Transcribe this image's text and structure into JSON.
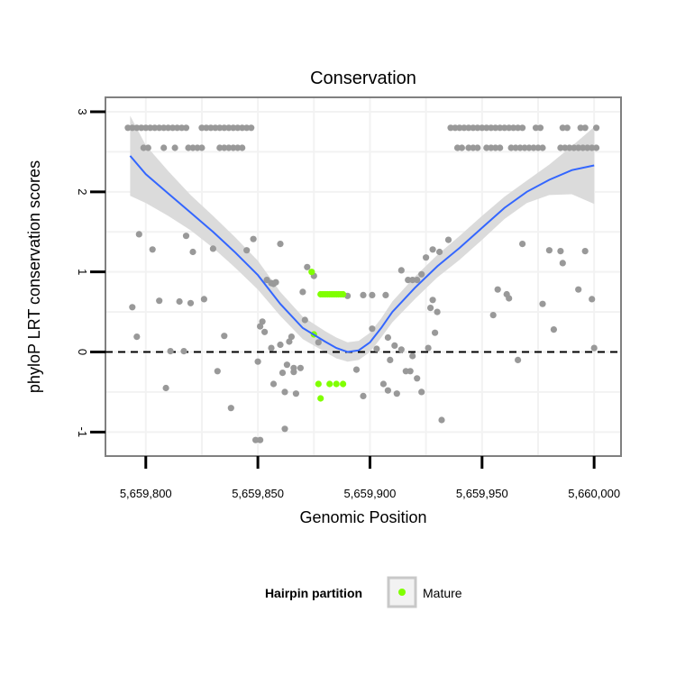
{
  "chart_data": {
    "type": "scatter",
    "title": "Conservation",
    "xlabel": "Genomic Position",
    "ylabel": "phyloP LRT conservation scores",
    "xlim": [
      5659782,
      5660012
    ],
    "ylim": [
      -1.3,
      3.18
    ],
    "x_ticks": [
      5659800,
      5659850,
      5659900,
      5659950,
      5660000
    ],
    "x_tick_labels": [
      "5,659,800",
      "5,659,850",
      "5,659,900",
      "5,659,950",
      "5,660,000"
    ],
    "y_ticks": [
      -1,
      0,
      1,
      2,
      3
    ],
    "y_tick_labels": [
      "-1",
      "0",
      "1",
      "2",
      "3"
    ],
    "reference_line": {
      "y": 0,
      "style": "dashed"
    },
    "grid": true,
    "legend": {
      "title": "Hairpin partition",
      "position": "bottom",
      "entries": [
        {
          "label": "Mature",
          "color": "#80ff00"
        }
      ]
    },
    "colors": {
      "other": "#999999",
      "mature": "#80ff00",
      "smooth": "#3366ff",
      "band": "#d9d9d9"
    },
    "series": [
      {
        "name": "Other",
        "points": [
          [
            5659792,
            2.8
          ],
          [
            5659794,
            2.8
          ],
          [
            5659796,
            2.8
          ],
          [
            5659798,
            2.8
          ],
          [
            5659800,
            2.8
          ],
          [
            5659802,
            2.8
          ],
          [
            5659804,
            2.8
          ],
          [
            5659806,
            2.8
          ],
          [
            5659808,
            2.8
          ],
          [
            5659810,
            2.8
          ],
          [
            5659812,
            2.8
          ],
          [
            5659814,
            2.8
          ],
          [
            5659816,
            2.8
          ],
          [
            5659818,
            2.8
          ],
          [
            5659825,
            2.8
          ],
          [
            5659827,
            2.8
          ],
          [
            5659829,
            2.8
          ],
          [
            5659831,
            2.8
          ],
          [
            5659833,
            2.8
          ],
          [
            5659835,
            2.8
          ],
          [
            5659837,
            2.8
          ],
          [
            5659839,
            2.8
          ],
          [
            5659841,
            2.8
          ],
          [
            5659843,
            2.8
          ],
          [
            5659845,
            2.8
          ],
          [
            5659847,
            2.8
          ],
          [
            5659799,
            2.55
          ],
          [
            5659801,
            2.55
          ],
          [
            5659808,
            2.55
          ],
          [
            5659813,
            2.55
          ],
          [
            5659819,
            2.55
          ],
          [
            5659821,
            2.55
          ],
          [
            5659823,
            2.55
          ],
          [
            5659825,
            2.55
          ],
          [
            5659833,
            2.55
          ],
          [
            5659835,
            2.55
          ],
          [
            5659837,
            2.55
          ],
          [
            5659839,
            2.55
          ],
          [
            5659841,
            2.55
          ],
          [
            5659843,
            2.55
          ],
          [
            5659936,
            2.8
          ],
          [
            5659938,
            2.8
          ],
          [
            5659940,
            2.8
          ],
          [
            5659942,
            2.8
          ],
          [
            5659944,
            2.8
          ],
          [
            5659946,
            2.8
          ],
          [
            5659948,
            2.8
          ],
          [
            5659950,
            2.8
          ],
          [
            5659952,
            2.8
          ],
          [
            5659954,
            2.8
          ],
          [
            5659956,
            2.8
          ],
          [
            5659958,
            2.8
          ],
          [
            5659960,
            2.8
          ],
          [
            5659962,
            2.8
          ],
          [
            5659964,
            2.8
          ],
          [
            5659966,
            2.8
          ],
          [
            5659968,
            2.8
          ],
          [
            5659974,
            2.8
          ],
          [
            5659976,
            2.8
          ],
          [
            5659986,
            2.8
          ],
          [
            5659988,
            2.8
          ],
          [
            5659994,
            2.8
          ],
          [
            5659996,
            2.8
          ],
          [
            5660001,
            2.8
          ],
          [
            5659939,
            2.55
          ],
          [
            5659941,
            2.55
          ],
          [
            5659944,
            2.55
          ],
          [
            5659946,
            2.55
          ],
          [
            5659948,
            2.55
          ],
          [
            5659952,
            2.55
          ],
          [
            5659954,
            2.55
          ],
          [
            5659956,
            2.55
          ],
          [
            5659958,
            2.55
          ],
          [
            5659963,
            2.55
          ],
          [
            5659965,
            2.55
          ],
          [
            5659967,
            2.55
          ],
          [
            5659969,
            2.55
          ],
          [
            5659971,
            2.55
          ],
          [
            5659973,
            2.55
          ],
          [
            5659975,
            2.55
          ],
          [
            5659977,
            2.55
          ],
          [
            5659985,
            2.55
          ],
          [
            5659987,
            2.55
          ],
          [
            5659989,
            2.55
          ],
          [
            5659991,
            2.55
          ],
          [
            5659993,
            2.55
          ],
          [
            5659995,
            2.55
          ],
          [
            5659997,
            2.55
          ],
          [
            5659999,
            2.55
          ],
          [
            5660001,
            2.55
          ],
          [
            5659797,
            1.47
          ],
          [
            5659803,
            1.28
          ],
          [
            5659818,
            1.45
          ],
          [
            5659821,
            1.25
          ],
          [
            5659830,
            1.29
          ],
          [
            5659845,
            1.27
          ],
          [
            5659848,
            1.41
          ],
          [
            5659860,
            1.35
          ],
          [
            5659794,
            0.56
          ],
          [
            5659796,
            0.19
          ],
          [
            5659806,
            0.64
          ],
          [
            5659809,
            -0.45
          ],
          [
            5659811,
            0.01
          ],
          [
            5659815,
            0.63
          ],
          [
            5659817,
            0.01
          ],
          [
            5659820,
            0.61
          ],
          [
            5659826,
            0.66
          ],
          [
            5659832,
            -0.24
          ],
          [
            5659835,
            0.2
          ],
          [
            5659838,
            -0.7
          ],
          [
            5659851,
            0.32
          ],
          [
            5659850,
            -0.12
          ],
          [
            5659849,
            -1.1
          ],
          [
            5659851,
            -1.1
          ],
          [
            5659852,
            0.38
          ],
          [
            5659853,
            0.25
          ],
          [
            5659854,
            0.9
          ],
          [
            5659856,
            0.86
          ],
          [
            5659857,
            0.85
          ],
          [
            5659858,
            0.87
          ],
          [
            5659856,
            0.05
          ],
          [
            5659857,
            -0.4
          ],
          [
            5659860,
            0.09
          ],
          [
            5659861,
            -0.26
          ],
          [
            5659862,
            -0.5
          ],
          [
            5659862,
            -0.96
          ],
          [
            5659863,
            -0.16
          ],
          [
            5659864,
            0.13
          ],
          [
            5659865,
            0.19
          ],
          [
            5659866,
            -0.2
          ],
          [
            5659866,
            -0.25
          ],
          [
            5659867,
            -0.52
          ],
          [
            5659869,
            -0.2
          ],
          [
            5659870,
            0.75
          ],
          [
            5659871,
            0.4
          ],
          [
            5659872,
            1.06
          ],
          [
            5659875,
            0.95
          ],
          [
            5659877,
            0.12
          ],
          [
            5659890,
            0.7
          ],
          [
            5659894,
            -0.22
          ],
          [
            5659897,
            0.71
          ],
          [
            5659897,
            -0.55
          ],
          [
            5659901,
            0.71
          ],
          [
            5659901,
            0.29
          ],
          [
            5659903,
            0.04
          ],
          [
            5659906,
            -0.4
          ],
          [
            5659907,
            0.71
          ],
          [
            5659908,
            -0.48
          ],
          [
            5659908,
            0.18
          ],
          [
            5659909,
            -0.1
          ],
          [
            5659911,
            0.08
          ],
          [
            5659912,
            -0.52
          ],
          [
            5659914,
            1.02
          ],
          [
            5659914,
            0.03
          ],
          [
            5659916,
            -0.24
          ],
          [
            5659917,
            0.9
          ],
          [
            5659918,
            -0.24
          ],
          [
            5659919,
            0.9
          ],
          [
            5659919,
            -0.05
          ],
          [
            5659921,
            0.9
          ],
          [
            5659921,
            -0.33
          ],
          [
            5659923,
            0.97
          ],
          [
            5659923,
            -0.5
          ],
          [
            5659925,
            1.18
          ],
          [
            5659926,
            0.05
          ],
          [
            5659927,
            0.55
          ],
          [
            5659928,
            0.65
          ],
          [
            5659928,
            1.28
          ],
          [
            5659929,
            0.24
          ],
          [
            5659930,
            0.5
          ],
          [
            5659931,
            1.25
          ],
          [
            5659932,
            -0.85
          ],
          [
            5659935,
            1.4
          ],
          [
            5659957,
            0.78
          ],
          [
            5659961,
            0.72
          ],
          [
            5659962,
            0.67
          ],
          [
            5659966,
            -0.1
          ],
          [
            5659955,
            0.46
          ],
          [
            5659968,
            1.35
          ],
          [
            5659977,
            0.6
          ],
          [
            5659982,
            0.28
          ],
          [
            5659980,
            1.27
          ],
          [
            5659985,
            1.26
          ],
          [
            5659986,
            1.11
          ],
          [
            5659993,
            0.78
          ],
          [
            5659996,
            1.26
          ],
          [
            5659999,
            0.66
          ],
          [
            5660000,
            0.05
          ]
        ]
      },
      {
        "name": "Mature",
        "points": [
          [
            5659874,
            1.0
          ],
          [
            5659875,
            0.22
          ],
          [
            5659877,
            -0.4
          ],
          [
            5659878,
            -0.58
          ],
          [
            5659878,
            0.72
          ],
          [
            5659879,
            0.72
          ],
          [
            5659880,
            0.72
          ],
          [
            5659881,
            0.72
          ],
          [
            5659882,
            0.72
          ],
          [
            5659882,
            -0.4
          ],
          [
            5659883,
            0.72
          ],
          [
            5659884,
            0.72
          ],
          [
            5659885,
            0.72
          ],
          [
            5659885,
            -0.4
          ],
          [
            5659886,
            0.72
          ],
          [
            5659887,
            0.72
          ],
          [
            5659888,
            0.72
          ],
          [
            5659888,
            -0.4
          ]
        ]
      }
    ],
    "smooth_fit": {
      "x": [
        5659793,
        5659800,
        5659810,
        5659820,
        5659830,
        5659840,
        5659850,
        5659860,
        5659870,
        5659880,
        5659885,
        5659890,
        5659895,
        5659900,
        5659905,
        5659910,
        5659920,
        5659930,
        5659940,
        5659950,
        5659960,
        5659970,
        5659980,
        5659990,
        5660000
      ],
      "y": [
        2.45,
        2.22,
        1.98,
        1.74,
        1.5,
        1.24,
        0.96,
        0.6,
        0.3,
        0.13,
        0.05,
        0.0,
        0.02,
        0.12,
        0.3,
        0.5,
        0.8,
        1.07,
        1.3,
        1.55,
        1.8,
        2.0,
        2.15,
        2.27,
        2.33
      ],
      "lower": [
        1.95,
        1.86,
        1.7,
        1.52,
        1.3,
        1.05,
        0.78,
        0.45,
        0.16,
        0.0,
        -0.08,
        -0.12,
        -0.1,
        0.0,
        0.18,
        0.37,
        0.66,
        0.93,
        1.15,
        1.4,
        1.66,
        1.86,
        1.96,
        1.97,
        1.85
      ],
      "upper": [
        2.95,
        2.58,
        2.26,
        1.96,
        1.7,
        1.43,
        1.14,
        0.75,
        0.44,
        0.26,
        0.18,
        0.12,
        0.14,
        0.24,
        0.42,
        0.63,
        0.94,
        1.21,
        1.45,
        1.7,
        1.94,
        2.14,
        2.34,
        2.57,
        2.81
      ]
    }
  }
}
